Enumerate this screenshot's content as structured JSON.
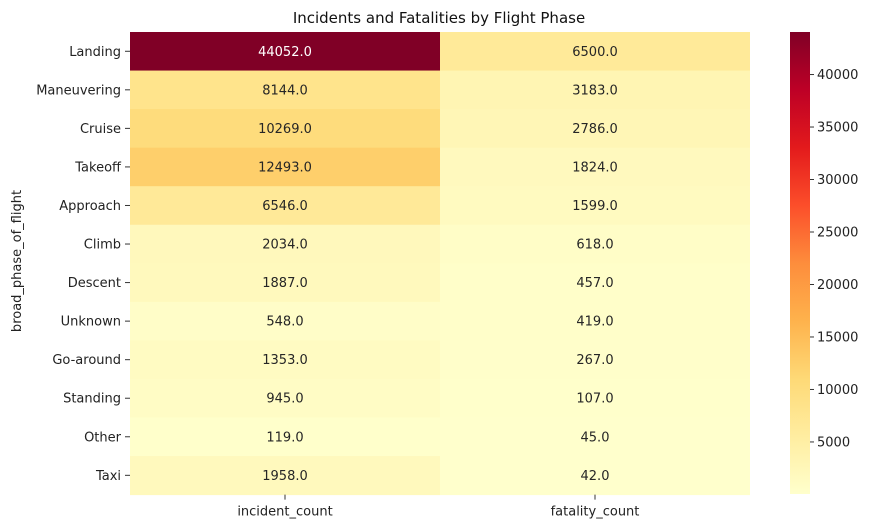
{
  "chart_data": {
    "type": "heatmap",
    "title": "Incidents and Fatalities by Flight Phase",
    "xlabel": "",
    "ylabel": "broad_phase_of_flight",
    "columns": [
      "incident_count",
      "fatality_count"
    ],
    "rows": [
      "Landing",
      "Maneuvering",
      "Cruise",
      "Takeoff",
      "Approach",
      "Climb",
      "Descent",
      "Unknown",
      "Go-around",
      "Standing",
      "Other",
      "Taxi"
    ],
    "values": [
      [
        44052.0,
        6500.0
      ],
      [
        8144.0,
        3183.0
      ],
      [
        10269.0,
        2786.0
      ],
      [
        12493.0,
        1824.0
      ],
      [
        6546.0,
        1599.0
      ],
      [
        2034.0,
        618.0
      ],
      [
        1887.0,
        457.0
      ],
      [
        548.0,
        419.0
      ],
      [
        1353.0,
        267.0
      ],
      [
        945.0,
        107.0
      ],
      [
        119.0,
        45.0
      ],
      [
        1958.0,
        42.0
      ]
    ],
    "cell_labels": [
      [
        "44052.0",
        "6500.0"
      ],
      [
        "8144.0",
        "3183.0"
      ],
      [
        "10269.0",
        "2786.0"
      ],
      [
        "12493.0",
        "1824.0"
      ],
      [
        "6546.0",
        "1599.0"
      ],
      [
        "2034.0",
        "618.0"
      ],
      [
        "1887.0",
        "457.0"
      ],
      [
        "548.0",
        "419.0"
      ],
      [
        "1353.0",
        "267.0"
      ],
      [
        "945.0",
        "107.0"
      ],
      [
        "119.0",
        "45.0"
      ],
      [
        "1958.0",
        "42.0"
      ]
    ],
    "colormap": "YlOrRd",
    "color_range": [
      42,
      44052
    ],
    "colorbar_ticks": [
      5000,
      10000,
      15000,
      20000,
      25000,
      30000,
      35000,
      40000
    ],
    "colorbar_tick_labels": [
      "5000",
      "10000",
      "15000",
      "20000",
      "25000",
      "30000",
      "35000",
      "40000"
    ],
    "colors": {
      "low": "#ffffcc",
      "high": "#800026",
      "text_dark": "#262626",
      "text_light": "#ffffff"
    }
  }
}
